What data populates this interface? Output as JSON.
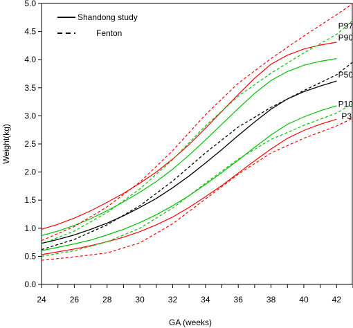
{
  "chart_data": {
    "type": "line",
    "xlabel": "GA (weeks)",
    "ylabel": "Weight(kg)",
    "xlim": [
      24,
      43
    ],
    "ylim": [
      0,
      5
    ],
    "x_ticks": [
      "24",
      "26",
      "28",
      "30",
      "32",
      "34",
      "36",
      "38",
      "40",
      "42"
    ],
    "y_ticks": [
      "0.0",
      "0.5",
      "1.0",
      "1.5",
      "2.0",
      "2.5",
      "3.0",
      "3.5",
      "4.0",
      "4.5",
      "5.0"
    ],
    "grid": false,
    "legend": {
      "position": "top-left",
      "entries": [
        {
          "label": "Shandong study",
          "style": "solid"
        },
        {
          "label": "Fenton",
          "style": "dashed"
        }
      ]
    },
    "colors": {
      "red": "#ff0000",
      "green": "#00c000",
      "black": "#000000"
    },
    "percentile_labels": [
      {
        "text": "P97",
        "x": 42.1,
        "y": 4.6
      },
      {
        "text": "P90",
        "x": 42.1,
        "y": 4.39
      },
      {
        "text": "P50",
        "x": 42.1,
        "y": 3.73
      },
      {
        "text": "P10",
        "x": 42.1,
        "y": 3.21
      },
      {
        "text": "P3",
        "x": 42.3,
        "y": 2.99
      }
    ],
    "series": [
      {
        "study": "Shandong study",
        "percentile": "P97",
        "color": "red",
        "dash": "solid",
        "x": [
          24,
          25,
          26,
          27,
          28,
          29,
          30,
          31,
          32,
          33,
          34,
          35,
          36,
          37,
          38,
          39,
          40,
          41,
          42
        ],
        "y": [
          0.98,
          1.07,
          1.18,
          1.31,
          1.46,
          1.62,
          1.8,
          2.0,
          2.23,
          2.49,
          2.78,
          3.08,
          3.38,
          3.67,
          3.92,
          4.08,
          4.19,
          4.26,
          4.31
        ]
      },
      {
        "study": "Shandong study",
        "percentile": "P90",
        "color": "green",
        "dash": "solid",
        "x": [
          24,
          25,
          26,
          27,
          28,
          29,
          30,
          31,
          32,
          33,
          34,
          35,
          36,
          37,
          38,
          39,
          40,
          41,
          42
        ],
        "y": [
          0.87,
          0.95,
          1.05,
          1.17,
          1.31,
          1.47,
          1.64,
          1.83,
          2.05,
          2.3,
          2.57,
          2.85,
          3.13,
          3.4,
          3.63,
          3.79,
          3.9,
          3.97,
          4.02
        ]
      },
      {
        "study": "Shandong study",
        "percentile": "P50",
        "color": "black",
        "dash": "solid",
        "x": [
          24,
          25,
          26,
          27,
          28,
          29,
          30,
          31,
          32,
          33,
          34,
          35,
          36,
          37,
          38,
          39,
          40,
          41,
          42
        ],
        "y": [
          0.73,
          0.8,
          0.88,
          0.98,
          1.09,
          1.22,
          1.37,
          1.53,
          1.72,
          1.93,
          2.16,
          2.4,
          2.65,
          2.89,
          3.12,
          3.3,
          3.43,
          3.53,
          3.62
        ]
      },
      {
        "study": "Shandong study",
        "percentile": "P10",
        "color": "green",
        "dash": "solid",
        "x": [
          24,
          25,
          26,
          27,
          28,
          29,
          30,
          31,
          32,
          33,
          34,
          35,
          36,
          37,
          38,
          39,
          40,
          41,
          42
        ],
        "y": [
          0.6,
          0.66,
          0.72,
          0.79,
          0.88,
          0.98,
          1.1,
          1.24,
          1.4,
          1.58,
          1.78,
          1.99,
          2.21,
          2.44,
          2.66,
          2.85,
          2.98,
          3.09,
          3.18
        ]
      },
      {
        "study": "Shandong study",
        "percentile": "P3",
        "color": "red",
        "dash": "solid",
        "x": [
          24,
          25,
          26,
          27,
          28,
          29,
          30,
          31,
          32,
          33,
          34,
          35,
          36,
          37,
          38,
          39,
          40,
          41,
          42
        ],
        "y": [
          0.53,
          0.58,
          0.63,
          0.69,
          0.76,
          0.84,
          0.94,
          1.06,
          1.2,
          1.37,
          1.56,
          1.76,
          1.98,
          2.2,
          2.41,
          2.6,
          2.74,
          2.85,
          2.94
        ]
      },
      {
        "study": "Fenton",
        "percentile": "P97",
        "color": "red",
        "dash": "dashed",
        "x": [
          24,
          26,
          28,
          30,
          32,
          34,
          36,
          38,
          40,
          42,
          43
        ],
        "y": [
          0.78,
          1.03,
          1.38,
          1.82,
          2.38,
          3.02,
          3.58,
          4.02,
          4.42,
          4.8,
          5.05
        ]
      },
      {
        "study": "Fenton",
        "percentile": "P90",
        "color": "green",
        "dash": "dashed",
        "x": [
          24,
          26,
          28,
          30,
          32,
          34,
          36,
          38,
          40,
          42,
          43
        ],
        "y": [
          0.72,
          0.95,
          1.28,
          1.7,
          2.22,
          2.82,
          3.35,
          3.76,
          4.12,
          4.45,
          4.7
        ]
      },
      {
        "study": "Fenton",
        "percentile": "P50",
        "color": "black",
        "dash": "dashed",
        "x": [
          24,
          26,
          28,
          30,
          32,
          34,
          36,
          38,
          40,
          42,
          43
        ],
        "y": [
          0.62,
          0.8,
          1.06,
          1.4,
          1.84,
          2.34,
          2.8,
          3.15,
          3.45,
          3.73,
          3.96
        ]
      },
      {
        "study": "Fenton",
        "percentile": "P10",
        "color": "green",
        "dash": "dashed",
        "x": [
          24,
          26,
          28,
          30,
          32,
          34,
          36,
          38,
          40,
          42,
          43
        ],
        "y": [
          0.5,
          0.6,
          0.76,
          1.0,
          1.36,
          1.8,
          2.23,
          2.58,
          2.83,
          3.05,
          3.22
        ]
      },
      {
        "study": "Fenton",
        "percentile": "P3",
        "color": "red",
        "dash": "dashed",
        "x": [
          24,
          26,
          28,
          30,
          32,
          34,
          36,
          38,
          40,
          42,
          43
        ],
        "y": [
          0.43,
          0.49,
          0.56,
          0.74,
          1.08,
          1.52,
          1.96,
          2.34,
          2.6,
          2.82,
          2.96
        ]
      }
    ]
  }
}
